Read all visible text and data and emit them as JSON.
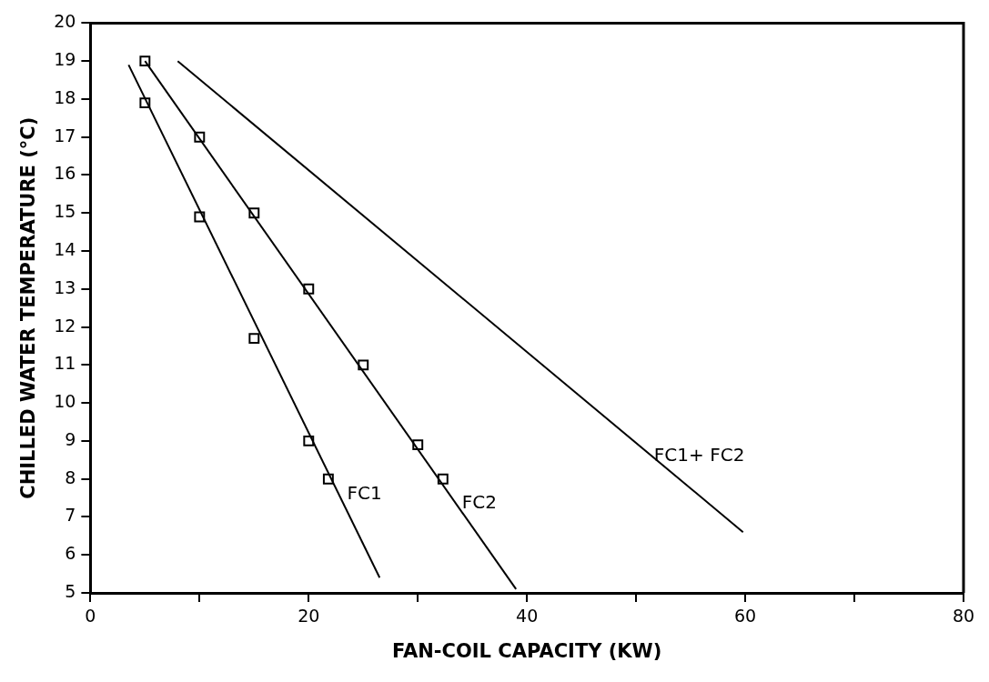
{
  "chart_data": {
    "type": "line",
    "xlabel": "FAN-COIL CAPACITY (KW)",
    "ylabel": "CHILLED WATER TEMPERATURE (°C)",
    "xlim": [
      0,
      80
    ],
    "xticks": [
      0,
      {
        "value": 10,
        "label": null
      },
      20,
      {
        "value": 30,
        "label": null
      },
      40,
      {
        "value": 50,
        "label": null
      },
      60,
      {
        "value": 70,
        "label": null
      },
      80
    ],
    "ylim": [
      5,
      20
    ],
    "yticks": [
      5,
      6,
      7,
      8,
      9,
      10,
      11,
      12,
      13,
      14,
      15,
      16,
      17,
      18,
      19,
      20
    ],
    "grid": false,
    "legend": false,
    "line_style": "solid",
    "series": [
      {
        "type": "scatter",
        "marker": "square",
        "color": "#000000",
        "x": [
          5,
          10,
          15,
          20,
          21.8
        ],
        "values": [
          17.9,
          14.9,
          11.7,
          9.0,
          8.0
        ]
      },
      {
        "type": "scatter",
        "marker": "square",
        "color": "#000000",
        "x": [
          5,
          10,
          15,
          20,
          25,
          30,
          32.3
        ],
        "values": [
          19.0,
          17.0,
          15.0,
          13.0,
          11.0,
          8.9,
          8.0
        ]
      },
      {
        "type": "line",
        "name": "FC1",
        "marker": "none",
        "color": "#000000",
        "x": [
          3.5,
          26.5
        ],
        "values": [
          18.9,
          5.4
        ]
      },
      {
        "type": "line",
        "name": "FC2",
        "marker": "none",
        "color": "#000000",
        "x": [
          5,
          39
        ],
        "values": [
          19.0,
          5.1
        ]
      },
      {
        "type": "line",
        "name": "FC1+ FC2",
        "marker": "none",
        "color": "#000000",
        "x": [
          8,
          59.8
        ],
        "values": [
          19.0,
          6.6
        ]
      }
    ]
  }
}
